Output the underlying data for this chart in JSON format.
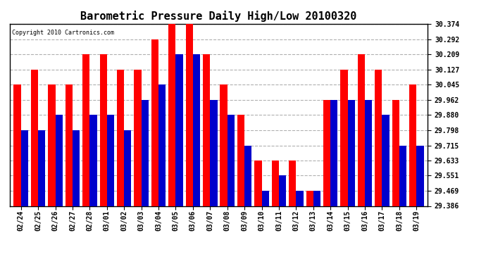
{
  "title": "Barometric Pressure Daily High/Low 20100320",
  "copyright": "Copyright 2010 Cartronics.com",
  "categories": [
    "02/24",
    "02/25",
    "02/26",
    "02/27",
    "02/28",
    "03/01",
    "03/02",
    "03/03",
    "03/04",
    "03/05",
    "03/06",
    "03/07",
    "03/08",
    "03/09",
    "03/10",
    "03/11",
    "03/12",
    "03/13",
    "03/14",
    "03/15",
    "03/16",
    "03/17",
    "03/18",
    "03/19"
  ],
  "highs": [
    30.045,
    30.127,
    30.045,
    30.045,
    30.209,
    30.209,
    30.127,
    30.127,
    30.292,
    30.374,
    30.374,
    30.209,
    30.045,
    29.88,
    29.633,
    29.633,
    29.633,
    29.469,
    29.962,
    30.127,
    30.209,
    30.127,
    29.962,
    30.045
  ],
  "lows": [
    29.798,
    29.798,
    29.88,
    29.798,
    29.88,
    29.88,
    29.798,
    29.962,
    30.045,
    30.209,
    30.209,
    29.962,
    29.88,
    29.715,
    29.469,
    29.551,
    29.469,
    29.469,
    29.962,
    29.962,
    29.962,
    29.88,
    29.715,
    29.715
  ],
  "ylim_min": 29.386,
  "ylim_max": 30.374,
  "yticks": [
    29.386,
    29.469,
    29.551,
    29.633,
    29.715,
    29.798,
    29.88,
    29.962,
    30.045,
    30.127,
    30.209,
    30.292,
    30.374
  ],
  "high_color": "#ff0000",
  "low_color": "#0000cc",
  "bg_color": "#ffffff",
  "grid_color": "#b0b0b0",
  "title_fontsize": 11,
  "tick_fontsize": 7,
  "bar_width": 0.42
}
